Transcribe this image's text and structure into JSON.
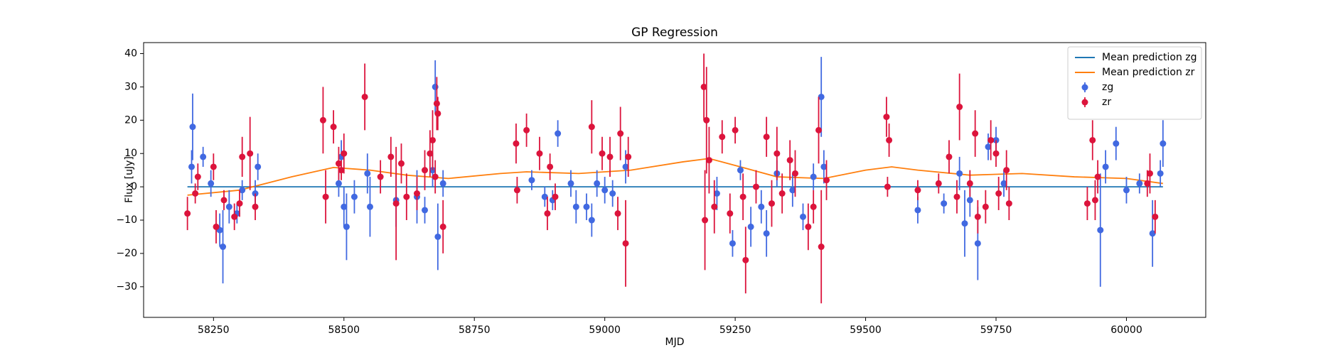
{
  "chart_data": {
    "type": "errorbar",
    "title": "GP Regression",
    "x_label": "MJD",
    "y_label": "Flux [uJy]",
    "xlim": [
      58116,
      60152
    ],
    "ylim": [
      -39.2,
      43.3
    ],
    "xticks": [
      58250,
      58500,
      58750,
      59000,
      59250,
      59500,
      59750,
      60000
    ],
    "yticks": [
      {
        "value": -30,
        "label": "−30"
      },
      {
        "value": -20,
        "label": "−20"
      },
      {
        "value": -10,
        "label": "−10"
      },
      0,
      10,
      20,
      30,
      40
    ],
    "legend": "upper right",
    "series": [
      {
        "name": "Mean prediction zg",
        "kind": "line",
        "color": "#1f77b4",
        "x": [
          58200,
          60070
        ],
        "values": [
          0,
          0
        ]
      },
      {
        "name": "Mean prediction zr",
        "kind": "line",
        "color": "#ff7f0e",
        "x": [
          58200,
          58300,
          58400,
          58480,
          58550,
          58620,
          58700,
          58800,
          58850,
          58950,
          59050,
          59150,
          59200,
          59260,
          59330,
          59420,
          59500,
          59550,
          59600,
          59700,
          59800,
          59900,
          60000,
          60070
        ],
        "values": [
          -2.5,
          -1,
          3,
          5.8,
          5,
          3.5,
          2.5,
          4,
          4.5,
          4,
          5,
          7.5,
          8.5,
          6,
          3,
          2.5,
          5,
          6,
          5,
          3.5,
          4,
          3,
          2.5,
          1
        ]
      },
      {
        "name": "zg",
        "kind": "errorbar",
        "color": "#4169e1",
        "x": [
          58208,
          58210,
          58230,
          58245,
          58262,
          58268,
          58280,
          58295,
          58305,
          58335,
          58330,
          58490,
          58495,
          58500,
          58505,
          58520,
          58545,
          58550,
          58600,
          58640,
          58655,
          58670,
          58675,
          58680,
          58690,
          58860,
          58885,
          58900,
          58910,
          58935,
          58945,
          58965,
          58975,
          58985,
          59000,
          59015,
          59040,
          59215,
          59245,
          59260,
          59280,
          59300,
          59310,
          59330,
          59360,
          59380,
          59400,
          59415,
          59420,
          59600,
          59650,
          59680,
          59690,
          59700,
          59715,
          59735,
          59750,
          59765,
          59950,
          59960,
          59980,
          60000,
          60025,
          60050,
          60065,
          60070
        ],
        "values": [
          6,
          18,
          9,
          1,
          -13,
          -18,
          -6,
          -8,
          -1,
          6,
          -2,
          1,
          9,
          -6,
          -12,
          -3,
          4,
          -6,
          -4,
          -3,
          -7,
          5,
          30,
          -15,
          1,
          2,
          -3,
          -4,
          16,
          1,
          -6,
          -6,
          -10,
          1,
          -1,
          -2,
          6,
          -2,
          -17,
          5,
          -12,
          -6,
          -14,
          4,
          -1,
          -9,
          3,
          27,
          6,
          -7,
          -5,
          4,
          -11,
          -4,
          -17,
          12,
          14,
          1,
          -13,
          6,
          13,
          -1,
          1,
          -14,
          4,
          13
        ],
        "errors": [
          5,
          10,
          3,
          4,
          5,
          11,
          5,
          3,
          3,
          4,
          4,
          4,
          5,
          6,
          10,
          5,
          6,
          9,
          8,
          8,
          4,
          5,
          8,
          10,
          4,
          3,
          3,
          3,
          4,
          4,
          5,
          4,
          5,
          4,
          4,
          4,
          5,
          5,
          4,
          3,
          6,
          5,
          7,
          4,
          5,
          4,
          4,
          12,
          5,
          4,
          3,
          5,
          10,
          5,
          11,
          4,
          4,
          4,
          17,
          5,
          5,
          4,
          3,
          10,
          4,
          7
        ]
      },
      {
        "name": "zr",
        "kind": "errorbar",
        "color": "#dc143c",
        "x": [
          58200,
          58215,
          58220,
          58250,
          58255,
          58270,
          58290,
          58300,
          58305,
          58320,
          58330,
          58460,
          58465,
          58480,
          58490,
          58495,
          58500,
          58540,
          58570,
          58590,
          58600,
          58610,
          58620,
          58640,
          58655,
          58665,
          58670,
          58675,
          58678,
          58680,
          58690,
          58830,
          58832,
          58850,
          58875,
          58890,
          58895,
          58905,
          58975,
          58995,
          59010,
          59025,
          59030,
          59040,
          59045,
          59190,
          59192,
          59195,
          59200,
          59210,
          59225,
          59240,
          59250,
          59265,
          59270,
          59290,
          59310,
          59320,
          59330,
          59340,
          59355,
          59365,
          59390,
          59400,
          59410,
          59415,
          59425,
          59540,
          59542,
          59545,
          59600,
          59640,
          59660,
          59675,
          59680,
          59700,
          59710,
          59715,
          59730,
          59740,
          59750,
          59755,
          59770,
          59775,
          59925,
          59935,
          59940,
          59945,
          60040,
          60045,
          60055
        ],
        "values": [
          -8,
          -2,
          3,
          6,
          -12,
          -4,
          -9,
          -5,
          9,
          10,
          -6,
          20,
          -3,
          18,
          7,
          5,
          10,
          27,
          3,
          9,
          -5,
          7,
          -3,
          -2,
          5,
          10,
          14,
          3,
          25,
          22,
          -12,
          13,
          -1,
          17,
          10,
          -8,
          6,
          -3,
          18,
          10,
          9,
          -8,
          16,
          -17,
          9,
          30,
          -10,
          20,
          8,
          -6,
          15,
          -8,
          17,
          -3,
          -22,
          0,
          15,
          -5,
          10,
          -2,
          8,
          4,
          -12,
          -6,
          17,
          -18,
          2,
          21,
          0,
          14,
          -1,
          1,
          9,
          -3,
          24,
          1,
          16,
          -9,
          -6,
          14,
          10,
          -2,
          5,
          -5,
          -5,
          14,
          -4,
          3,
          1,
          4,
          -9
        ],
        "errors": [
          5,
          3,
          4,
          4,
          5,
          3,
          4,
          4,
          6,
          11,
          4,
          10,
          8,
          5,
          5,
          3,
          6,
          10,
          5,
          6,
          17,
          6,
          7,
          5,
          6,
          7,
          9,
          5,
          8,
          5,
          8,
          6,
          4,
          5,
          5,
          5,
          4,
          4,
          8,
          5,
          6,
          5,
          8,
          13,
          6,
          10,
          15,
          16,
          10,
          8,
          5,
          6,
          4,
          7,
          10,
          5,
          6,
          7,
          8,
          6,
          6,
          7,
          7,
          5,
          10,
          17,
          6,
          6,
          3,
          5,
          3,
          3,
          5,
          5,
          10,
          4,
          7,
          5,
          5,
          6,
          4,
          5,
          6,
          5,
          5,
          6,
          6,
          5,
          4,
          6,
          5
        ]
      }
    ]
  }
}
